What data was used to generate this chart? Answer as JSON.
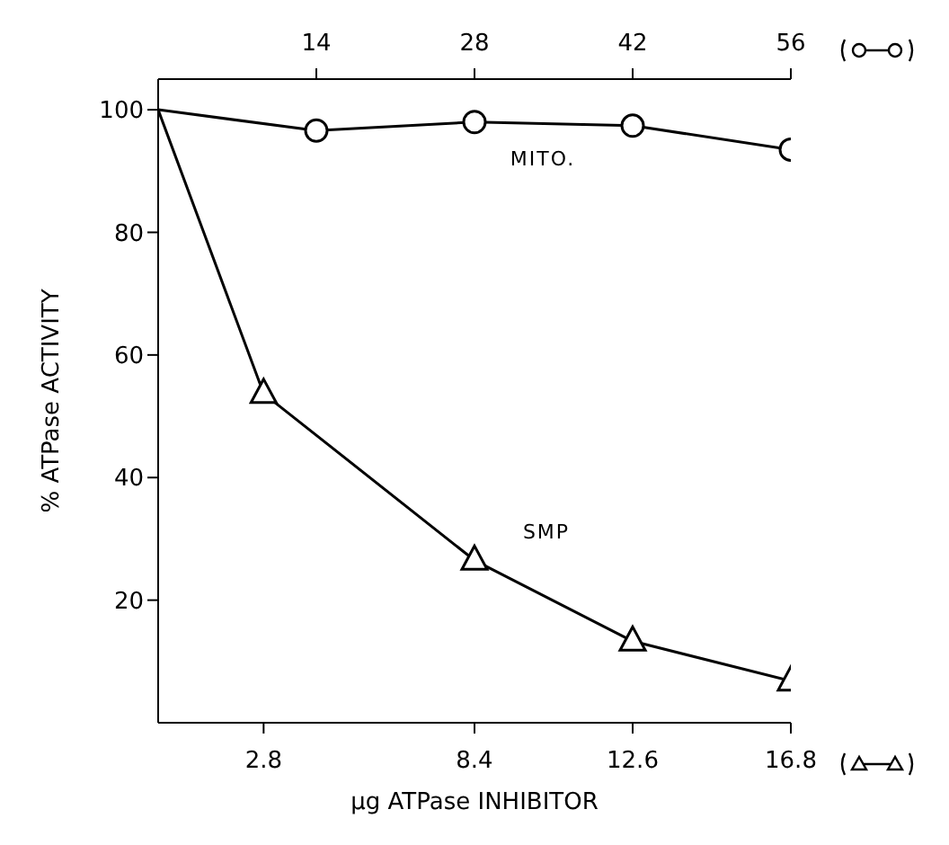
{
  "chart_data": {
    "type": "line",
    "xlabel": "µg ATPase INHIBITOR",
    "ylabel": "% ATPase ACTIVITY",
    "xlim": [
      0,
      16.8
    ],
    "xticks": [
      2.8,
      8.4,
      12.6,
      16.8
    ],
    "x2lim": [
      0,
      56
    ],
    "x2ticks": [
      14,
      28,
      42,
      56
    ],
    "ylim": [
      0,
      105
    ],
    "yticks": [
      20,
      40,
      60,
      80,
      100
    ],
    "series": [
      {
        "name": "MITO.",
        "color": "#000000",
        "marker": "circle",
        "axis": "x2",
        "x": [
          0,
          14,
          28,
          42,
          56
        ],
        "values": [
          100,
          96.6,
          98,
          97.4,
          93.5
        ]
      },
      {
        "name": "SMP",
        "color": "#000000",
        "marker": "triangle",
        "x": [
          0,
          2.8,
          8.4,
          12.6,
          16.8
        ],
        "values": [
          100,
          53.7,
          26.5,
          13.3,
          6.8
        ]
      }
    ]
  }
}
